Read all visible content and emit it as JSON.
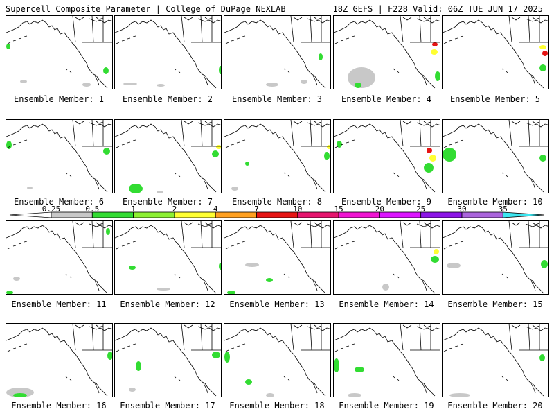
{
  "header": {
    "left_title": "Supercell Composite Parameter | College of DuPage NEXLAB",
    "right_title": "18Z GEFS | F228 Valid: 06Z TUE JUN 17 2025"
  },
  "panels": [
    {
      "label": "Ensemble Member: 1"
    },
    {
      "label": "Ensemble Member: 2"
    },
    {
      "label": "Ensemble Member: 3"
    },
    {
      "label": "Ensemble Member: 4"
    },
    {
      "label": "Ensemble Member: 5"
    },
    {
      "label": "Ensemble Member: 6"
    },
    {
      "label": "Ensemble Member: 7"
    },
    {
      "label": "Ensemble Member: 8"
    },
    {
      "label": "Ensemble Member: 9"
    },
    {
      "label": "Ensemble Member: 10"
    },
    {
      "label": "Ensemble Member: 11"
    },
    {
      "label": "Ensemble Member: 12"
    },
    {
      "label": "Ensemble Member: 13"
    },
    {
      "label": "Ensemble Member: 14"
    },
    {
      "label": "Ensemble Member: 15"
    },
    {
      "label": "Ensemble Member: 16"
    },
    {
      "label": "Ensemble Member: 17"
    },
    {
      "label": "Ensemble Member: 18"
    },
    {
      "label": "Ensemble Member: 19"
    },
    {
      "label": "Ensemble Member: 20"
    }
  ],
  "colorbar": {
    "ticks": [
      "0.25",
      "0.5",
      "1",
      "2",
      "4",
      "7",
      "10",
      "15",
      "20",
      "25",
      "30",
      "35"
    ],
    "colors": [
      "#c8c8c8",
      "#32dc32",
      "#8cf032",
      "#ffff32",
      "#ffa020",
      "#e61414",
      "#e6146e",
      "#f014d2",
      "#dc14ff",
      "#8c14e6",
      "#aa64dc",
      "#3ce6f0"
    ]
  }
}
